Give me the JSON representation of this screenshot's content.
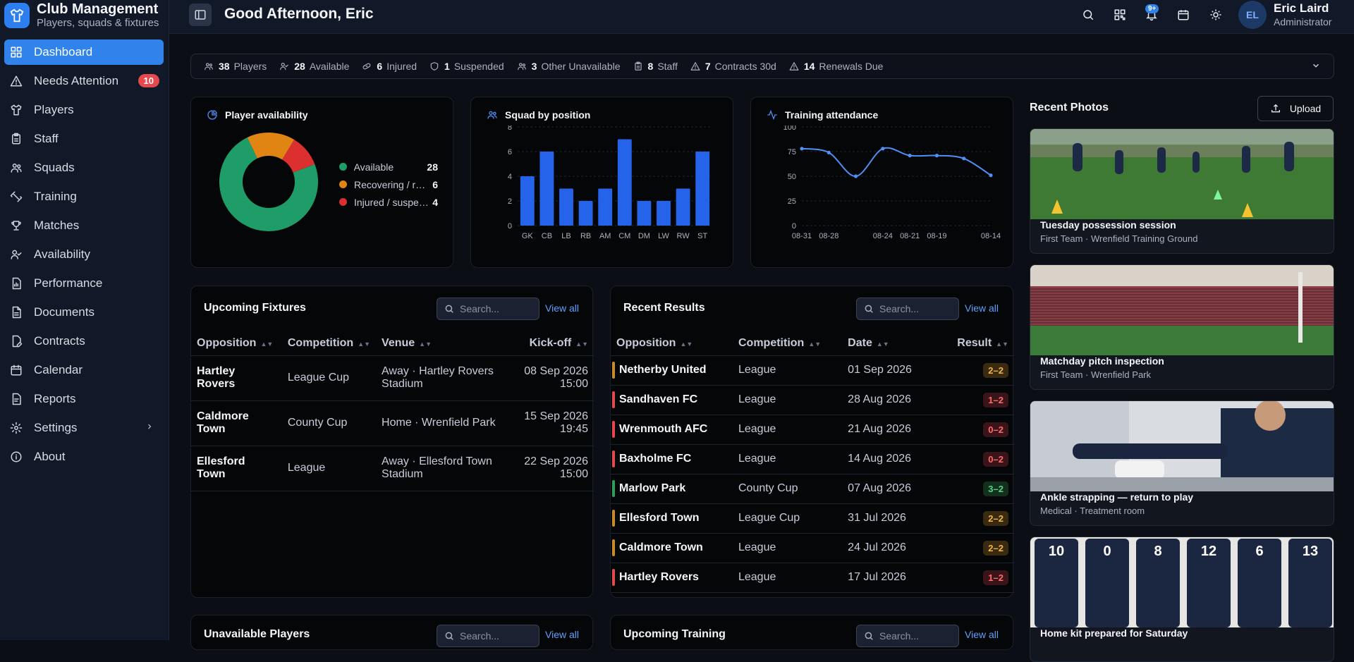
{
  "app": {
    "title": "Club Management",
    "subtitle": "Players, squads & fixtures"
  },
  "nav": [
    {
      "label": "Dashboard",
      "icon": "grid-icon",
      "active": true
    },
    {
      "label": "Needs Attention",
      "icon": "warning-icon",
      "badge": "10"
    },
    {
      "label": "Players",
      "icon": "shirt-icon"
    },
    {
      "label": "Staff",
      "icon": "clipboard-icon"
    },
    {
      "label": "Squads",
      "icon": "users-icon"
    },
    {
      "label": "Training",
      "icon": "dumbbell-icon"
    },
    {
      "label": "Matches",
      "icon": "trophy-icon"
    },
    {
      "label": "Availability",
      "icon": "user-check-icon"
    },
    {
      "label": "Performance",
      "icon": "document-chart-icon"
    },
    {
      "label": "Documents",
      "icon": "file-icon"
    },
    {
      "label": "Contracts",
      "icon": "pen-file-icon"
    },
    {
      "label": "Calendar",
      "icon": "calendar-icon"
    },
    {
      "label": "Reports",
      "icon": "report-icon"
    },
    {
      "label": "Settings",
      "icon": "gear-icon",
      "chevron": true
    },
    {
      "label": "About",
      "icon": "info-icon"
    }
  ],
  "header": {
    "greeting": "Good Afternoon, Eric",
    "notification_badge": "9+",
    "user_name": "Eric Laird",
    "user_role": "Administrator",
    "avatar_initials": "EL"
  },
  "stats": [
    {
      "value": "38",
      "label": "Players",
      "icon": "users-icon"
    },
    {
      "value": "28",
      "label": "Available",
      "icon": "user-check-icon"
    },
    {
      "value": "6",
      "label": "Injured",
      "icon": "bandage-icon"
    },
    {
      "value": "1",
      "label": "Suspended",
      "icon": "shield-icon"
    },
    {
      "value": "3",
      "label": "Other Unavailable",
      "icon": "users-icon"
    },
    {
      "value": "8",
      "label": "Staff",
      "icon": "clipboard-icon"
    },
    {
      "value": "7",
      "label": "Contracts 30d",
      "icon": "warning-icon"
    },
    {
      "value": "14",
      "label": "Renewals Due",
      "icon": "warning-icon"
    }
  ],
  "availability": {
    "title": "Player availability",
    "items": [
      {
        "label": "Available",
        "value": "28",
        "color": "#1f9d68"
      },
      {
        "label": "Recovering / returning",
        "value": "6",
        "color": "#e08414"
      },
      {
        "label": "Injured / suspended",
        "value": "4",
        "color": "#dc2f2f"
      }
    ]
  },
  "squad_chart": {
    "title": "Squad by position"
  },
  "training_chart": {
    "title": "Training attendance"
  },
  "chart_data": [
    {
      "type": "pie",
      "title": "Player availability",
      "categories": [
        "Available",
        "Recovering / returning",
        "Injured / suspended"
      ],
      "values": [
        28,
        6,
        4
      ]
    },
    {
      "type": "bar",
      "title": "Squad by position",
      "categories": [
        "GK",
        "CB",
        "LB",
        "RB",
        "AM",
        "CM",
        "DM",
        "LW",
        "RW",
        "ST"
      ],
      "values": [
        4,
        6,
        3,
        2,
        3,
        7,
        2,
        2,
        3,
        6
      ],
      "ylim": [
        0,
        8
      ],
      "yticks": [
        0,
        2,
        4,
        6,
        8
      ],
      "color": "#2563eb"
    },
    {
      "type": "line",
      "title": "Training attendance",
      "x": [
        "08-31",
        "08-28",
        "08-26",
        "08-24",
        "08-21",
        "08-19",
        "08-16",
        "08-14"
      ],
      "xtick_labels": [
        "08-31",
        "08-28",
        "",
        "08-24",
        "08-21",
        "08-19",
        "",
        "08-14"
      ],
      "values": [
        78,
        74,
        50,
        78,
        71,
        71,
        68,
        51
      ],
      "ylim": [
        0,
        100
      ],
      "yticks": [
        0,
        25,
        50,
        75,
        100
      ],
      "color": "#4f8ff7"
    }
  ],
  "fixtures": {
    "title": "Upcoming Fixtures",
    "search_placeholder": "Search...",
    "view_all": "View all",
    "columns": [
      "Opposition",
      "Competition",
      "Venue",
      "Kick-off"
    ],
    "rows": [
      {
        "opposition": "Hartley Rovers",
        "competition": "League Cup",
        "venue": "Away · Hartley Rovers Stadium",
        "date": "08 Sep 2026",
        "time": "15:00"
      },
      {
        "opposition": "Caldmore Town",
        "competition": "County Cup",
        "venue": "Home · Wrenfield Park",
        "date": "15 Sep 2026",
        "time": "19:45"
      },
      {
        "opposition": "Ellesford Town",
        "competition": "League",
        "venue": "Away · Ellesford Town Stadium",
        "date": "22 Sep 2026",
        "time": "15:00"
      }
    ]
  },
  "results": {
    "title": "Recent Results",
    "search_placeholder": "Search...",
    "view_all": "View all",
    "columns": [
      "Opposition",
      "Competition",
      "Date",
      "Result"
    ],
    "rows": [
      {
        "opposition": "Netherby United",
        "competition": "League",
        "date": "01 Sep 2026",
        "result": "2–2",
        "outcome": "d"
      },
      {
        "opposition": "Sandhaven FC",
        "competition": "League",
        "date": "28 Aug 2026",
        "result": "1–2",
        "outcome": "l"
      },
      {
        "opposition": "Wrenmouth AFC",
        "competition": "League",
        "date": "21 Aug 2026",
        "result": "0–2",
        "outcome": "l"
      },
      {
        "opposition": "Baxholme FC",
        "competition": "League",
        "date": "14 Aug 2026",
        "result": "0–2",
        "outcome": "l"
      },
      {
        "opposition": "Marlow Park",
        "competition": "County Cup",
        "date": "07 Aug 2026",
        "result": "3–2",
        "outcome": "w"
      },
      {
        "opposition": "Ellesford Town",
        "competition": "League Cup",
        "date": "31 Jul 2026",
        "result": "2–2",
        "outcome": "d"
      },
      {
        "opposition": "Caldmore Town",
        "competition": "League",
        "date": "24 Jul 2026",
        "result": "2–2",
        "outcome": "d"
      },
      {
        "opposition": "Hartley Rovers",
        "competition": "League",
        "date": "17 Jul 2026",
        "result": "1–2",
        "outcome": "l"
      }
    ]
  },
  "photos": {
    "title": "Recent Photos",
    "upload": "Upload",
    "items": [
      {
        "caption": "Tuesday possession session",
        "meta": "First Team · Wrenfield Training Ground",
        "scene": "training"
      },
      {
        "caption": "Matchday pitch inspection",
        "meta": "First Team · Wrenfield Park",
        "scene": "stadium"
      },
      {
        "caption": "Ankle strapping — return to play",
        "meta": "Medical · Treatment room",
        "scene": "medical"
      },
      {
        "caption": "Home kit prepared for Saturday",
        "meta": "",
        "scene": "kit",
        "numbers": [
          "10",
          "0",
          "8",
          "12",
          "6",
          "13"
        ]
      }
    ]
  },
  "bottom": {
    "unavailable_title": "Unavailable Players",
    "training_title": "Upcoming Training",
    "search_placeholder": "Search...",
    "view_all": "View all"
  }
}
